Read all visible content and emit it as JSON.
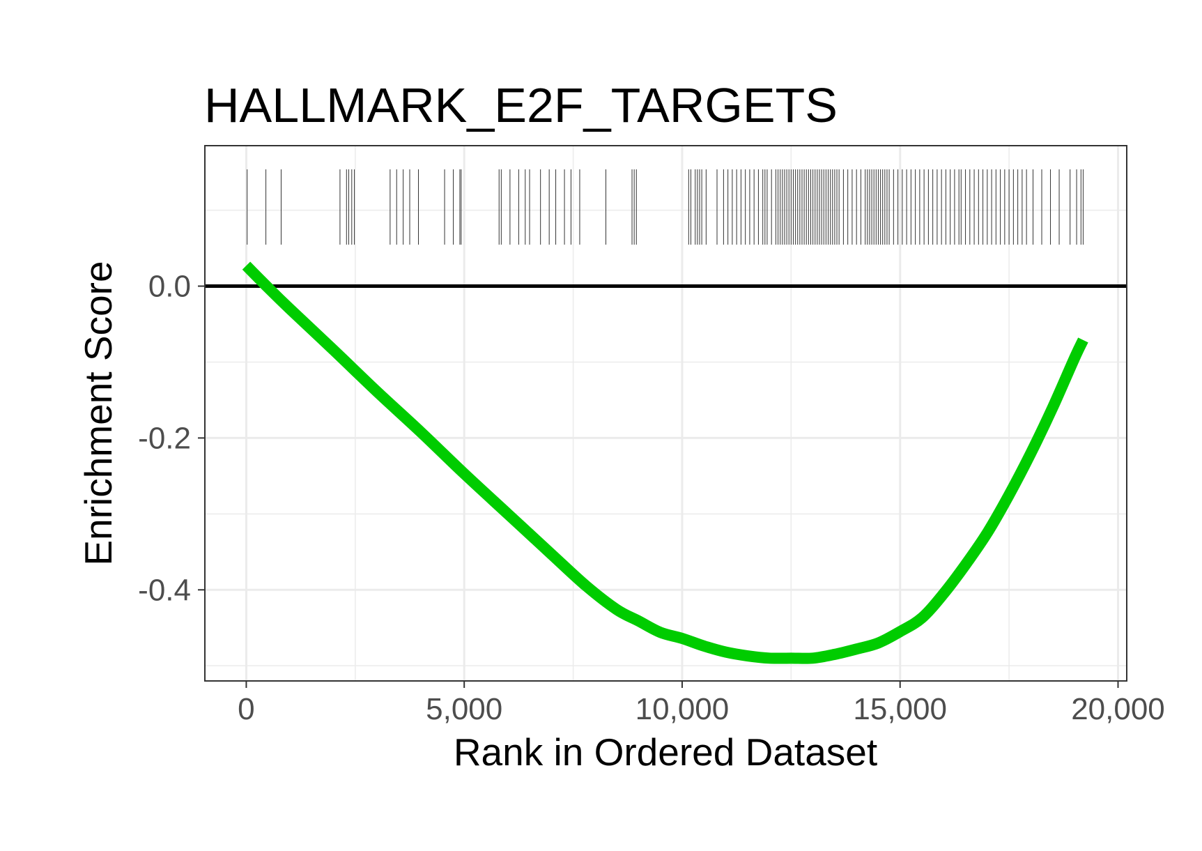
{
  "chart_data": {
    "type": "line",
    "title": "HALLMARK_E2F_TARGETS",
    "xlabel": "Rank in Ordered Dataset",
    "ylabel": "Enrichment Score",
    "xlim": [
      -950,
      20200
    ],
    "ylim": [
      -0.52,
      0.185
    ],
    "x_ticks": [
      0,
      5000,
      10000,
      15000,
      20000
    ],
    "x_tick_labels": [
      "0",
      "5,000",
      "10,000",
      "15,000",
      "20,000"
    ],
    "y_ticks": [
      0.0,
      -0.2,
      -0.4
    ],
    "y_tick_labels": [
      "0.0",
      "-0.2",
      "-0.4"
    ],
    "grid": true,
    "zero_line": true,
    "series": [
      {
        "color": "#00cc00",
        "x": [
          0,
          500,
          1000,
          2000,
          3000,
          4000,
          5000,
          6000,
          7000,
          7800,
          8500,
          9000,
          9500,
          10000,
          10500,
          11000,
          11500,
          12000,
          12500,
          13000,
          13500,
          14000,
          14500,
          15000,
          15500,
          16000,
          16500,
          17000,
          17500,
          18000,
          18500,
          19000,
          19200
        ],
        "y": [
          0.027,
          -0.002,
          -0.03,
          -0.084,
          -0.139,
          -0.192,
          -0.247,
          -0.3,
          -0.353,
          -0.395,
          -0.426,
          -0.441,
          -0.456,
          -0.464,
          -0.474,
          -0.482,
          -0.487,
          -0.49,
          -0.49,
          -0.49,
          -0.485,
          -0.478,
          -0.47,
          -0.455,
          -0.437,
          -0.405,
          -0.367,
          -0.325,
          -0.275,
          -0.22,
          -0.16,
          -0.095,
          -0.071
        ]
      }
    ],
    "gene_hits": [
      20,
      450,
      800,
      2150,
      2300,
      2350,
      2420,
      2480,
      3300,
      3450,
      3600,
      3750,
      3950,
      4550,
      4750,
      4900,
      4930,
      5800,
      5850,
      6050,
      6250,
      6400,
      6500,
      6750,
      6950,
      7100,
      7300,
      7450,
      7650,
      8250,
      8850,
      8900,
      8950,
      10150,
      10200,
      10300,
      10350,
      10400,
      10450,
      10550,
      10800,
      10950,
      11050,
      11150,
      11250,
      11350,
      11450,
      11550,
      11650,
      11750,
      11850,
      11900,
      11950,
      12050,
      12150,
      12200,
      12250,
      12300,
      12350,
      12400,
      12450,
      12500,
      12550,
      12600,
      12650,
      12700,
      12750,
      12800,
      12850,
      12900,
      12950,
      13000,
      13050,
      13100,
      13150,
      13200,
      13250,
      13300,
      13350,
      13400,
      13450,
      13500,
      13550,
      13600,
      13700,
      13800,
      13900,
      14000,
      14100,
      14200,
      14250,
      14300,
      14350,
      14400,
      14450,
      14500,
      14550,
      14600,
      14650,
      14700,
      14750,
      14850,
      14950,
      15050,
      15150,
      15250,
      15350,
      15450,
      15550,
      15650,
      15750,
      15850,
      15950,
      16050,
      16150,
      16250,
      16350,
      16400,
      16500,
      16600,
      16700,
      16800,
      16900,
      17000,
      17100,
      17200,
      17300,
      17400,
      17500,
      17600,
      17700,
      17800,
      17900,
      18050,
      18250,
      18450,
      18650,
      18900,
      19050,
      19150,
      19200
    ]
  }
}
